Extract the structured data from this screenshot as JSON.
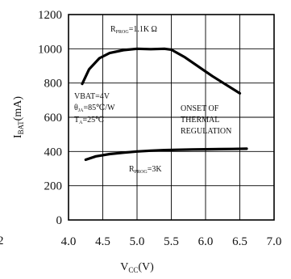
{
  "chart_data": {
    "type": "line",
    "xlabel": "V",
    "xlabel_sub": "CC",
    "xlabel_unit": "(V)",
    "ylabel": "I",
    "ylabel_sub": "BAT",
    "ylabel_unit": "(mA)",
    "xlim": [
      4.0,
      7.0
    ],
    "ylim": [
      0,
      1200
    ],
    "xticks": [
      "4.0",
      "4.5",
      "5.0",
      "5.5",
      "6.0",
      "6.5",
      "7.0"
    ],
    "yticks": [
      "0",
      "200",
      "400",
      "600",
      "800",
      "1000",
      "1200"
    ],
    "edge_fragment": "2",
    "grid": true,
    "series": [
      {
        "label_main": "R",
        "label_sub": "PROG",
        "label_value": "=1.1K Ω",
        "x": [
          4.2,
          4.3,
          4.45,
          4.6,
          4.8,
          5.0,
          5.2,
          5.4,
          5.5,
          5.7,
          5.9,
          6.1,
          6.3,
          6.5
        ],
        "y": [
          795,
          880,
          945,
          975,
          992,
          1000,
          998,
          1000,
          995,
          950,
          895,
          840,
          790,
          740
        ]
      },
      {
        "label_main": "R",
        "label_sub": "PROG",
        "label_value": "=3K",
        "x": [
          4.25,
          4.4,
          4.6,
          4.8,
          5.0,
          5.2,
          5.4,
          5.6,
          5.8,
          6.0,
          6.2,
          6.4,
          6.6
        ],
        "y": [
          352,
          372,
          385,
          393,
          400,
          405,
          408,
          410,
          412,
          413,
          414,
          415,
          416
        ]
      }
    ],
    "conditions": {
      "line1": "VBAT=4V",
      "line2_prefix": "θ",
      "line2_sub": "JA",
      "line2_value": "=85℃/W",
      "line3_prefix": "T",
      "line3_sub": "A",
      "line3_value": "=25℃"
    },
    "annotation": [
      "ONSET OF",
      "THERMAL",
      "REGULATION"
    ]
  }
}
